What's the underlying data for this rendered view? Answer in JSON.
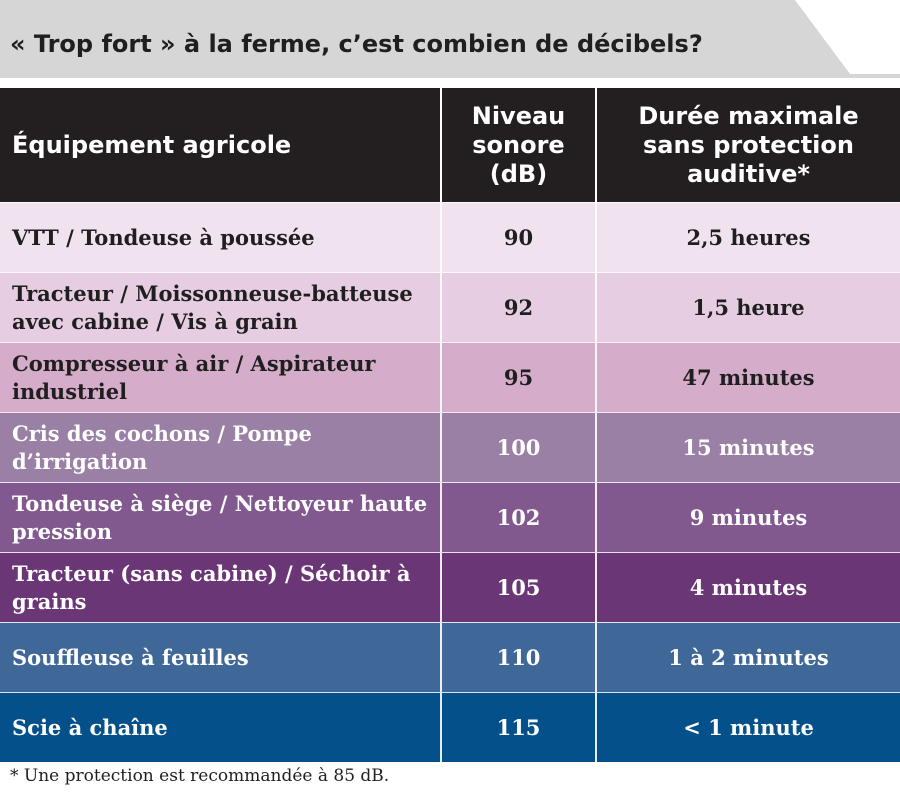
{
  "title": "« Trop fort » à la ferme, c’est combien de décibels?",
  "headers": {
    "equipment": "Équipement agricole",
    "level_lines": [
      "Niveau",
      "sonore",
      "(dB)"
    ],
    "duration_lines": [
      "Durée maximale",
      "sans protection",
      "auditive*"
    ]
  },
  "rows": [
    {
      "equipment": "VTT / Tondeuse à poussée",
      "db": "90",
      "duration": "2,5 heures",
      "bg": "#f0e3ef",
      "fg": "#1f1f1f"
    },
    {
      "equipment": "Tracteur / Moissonneuse-batteuse avec cabine / Vis à grain",
      "db": "92",
      "duration": "1,5 heure",
      "bg": "#e6cde1",
      "fg": "#1f1f1f"
    },
    {
      "equipment": "Compresseur à air / Aspirateur industriel",
      "db": "95",
      "duration": "47 minutes",
      "bg": "#d5acc9",
      "fg": "#1f1f1f"
    },
    {
      "equipment": "Cris des cochons / Pompe d’irrigation",
      "db": "100",
      "duration": "15 minutes",
      "bg": "#9b80a6",
      "fg": "#ffffff"
    },
    {
      "equipment": "Tondeuse à siège / Nettoyeur haute pression",
      "db": "102",
      "duration": "9 minutes",
      "bg": "#82598e",
      "fg": "#ffffff"
    },
    {
      "equipment": "Tracteur (sans cabine) / Séchoir à grains",
      "db": "105",
      "duration": "4 minutes",
      "bg": "#6b3675",
      "fg": "#ffffff"
    },
    {
      "equipment": "Souffleuse à feuilles",
      "db": "110",
      "duration": "1 à 2 minutes",
      "bg": "#3f6898",
      "fg": "#ffffff"
    },
    {
      "equipment": "Scie à chaîne",
      "db": "115",
      "duration": "< 1 minute",
      "bg": "#03508a",
      "fg": "#ffffff"
    }
  ],
  "footnote": "* Une protection est recommandée à 85 dB.",
  "chart_data": {
    "type": "table",
    "columns": [
      "Équipement agricole",
      "Niveau sonore (dB)",
      "Durée maximale sans protection auditive*"
    ],
    "rows": [
      [
        "VTT / Tondeuse à poussée",
        90,
        "2,5 heures"
      ],
      [
        "Tracteur / Moissonneuse-batteuse avec cabine / Vis à grain",
        92,
        "1,5 heure"
      ],
      [
        "Compresseur à air / Aspirateur industriel",
        95,
        "47 minutes"
      ],
      [
        "Cris des cochons / Pompe d’irrigation",
        100,
        "15 minutes"
      ],
      [
        "Tondeuse à siège / Nettoyeur haute pression",
        102,
        "9 minutes"
      ],
      [
        "Tracteur (sans cabine) / Séchoir à grains",
        105,
        "4 minutes"
      ],
      [
        "Souffleuse à feuilles",
        110,
        "1 à 2 minutes"
      ],
      [
        "Scie à chaîne",
        115,
        "< 1 minute"
      ]
    ]
  }
}
